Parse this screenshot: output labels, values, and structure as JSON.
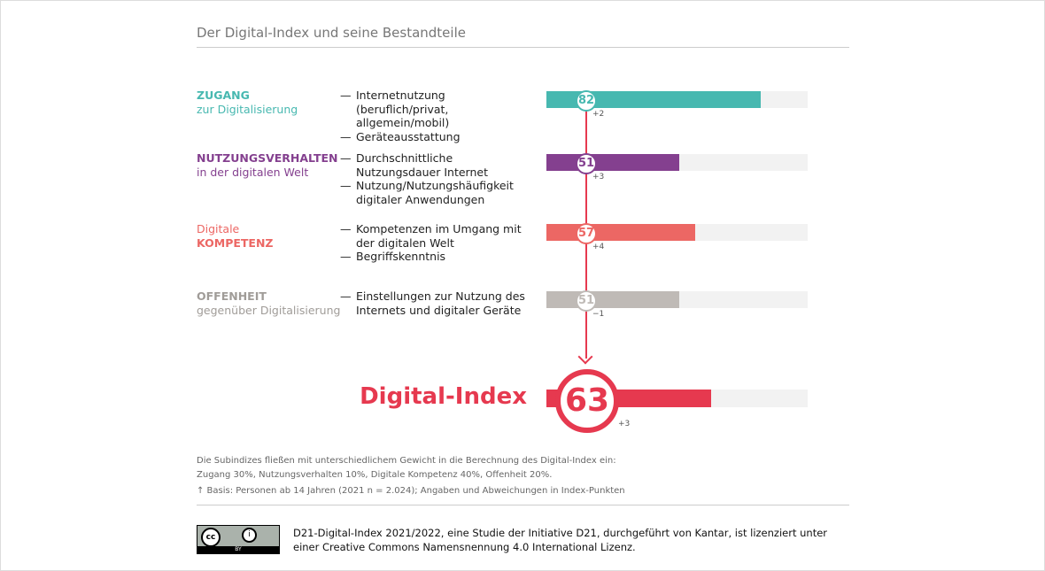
{
  "title": "Der Digital-Index und seine Bestandteile",
  "rows": [
    {
      "cat1": "ZUGANG",
      "cat2": "zur Digitalisierung",
      "bold_first": true,
      "color": "#47b8b0",
      "items": [
        "Internetnutzung (beruflich/privat, allgemein/mobil)",
        "Geräteausstattung"
      ],
      "value": 82,
      "delta": "+2"
    },
    {
      "cat1": "NUTZUNGSVERHALTEN",
      "cat2": "in der digitalen Welt",
      "bold_first": true,
      "color": "#84408f",
      "items": [
        "Durchschnittliche Nutzungsdauer Internet",
        "Nutzung/Nutzungshäufigkeit digitaler Anwendungen"
      ],
      "value": 51,
      "delta": "+3"
    },
    {
      "cat1": "Digitale",
      "cat2": "KOMPETENZ",
      "bold_first": false,
      "color": "#ec6764",
      "items": [
        "Kompetenzen im Umgang mit der digitalen Welt",
        "Begriffskenntnis"
      ],
      "value": 57,
      "delta": "+4"
    },
    {
      "cat1": "OFFENHEIT",
      "cat2": "gegenüber Digitalisierung",
      "bold_first": true,
      "color": "#bfbab6",
      "items": [
        "Einstellungen zur Nutzung des Internets und digitaler Geräte"
      ],
      "value": 51,
      "delta": "−1"
    }
  ],
  "index": {
    "label": "Digital-Index",
    "value": 63,
    "delta": "+3",
    "color": "#e6394f"
  },
  "notes": [
    "Die Subindizes fließen mit unterschiedlichem Gewicht in die Berechnung des Digital-Index ein:",
    "Zugang 30%, Nutzungsverhalten 10%, Digitale Kompetenz 40%, Offenheit 20%.",
    "↑ Basis: Personen ab 14 Jahren (2021 n = 2.024); Angaben und Abweichungen in Index-Punkten"
  ],
  "license": {
    "logo_text": [
      "cc",
      "BY"
    ],
    "line1": "D21-Digital-Index 2021/2022, eine Studie der Initiative D21, durchgeführt von Kantar, ist lizenziert unter",
    "line2": "einer Creative Commons Namensnennung 4.0 International Lizenz."
  },
  "chart_data": {
    "type": "bar",
    "title": "Der Digital-Index und seine Bestandteile",
    "categories": [
      "Zugang",
      "Nutzungsverhalten",
      "Digitale Kompetenz",
      "Offenheit",
      "Digital-Index"
    ],
    "values": [
      82,
      51,
      57,
      51,
      63
    ],
    "deltas": [
      "+2",
      "+3",
      "+4",
      "−1",
      "+3"
    ],
    "ylim": [
      0,
      100
    ]
  }
}
